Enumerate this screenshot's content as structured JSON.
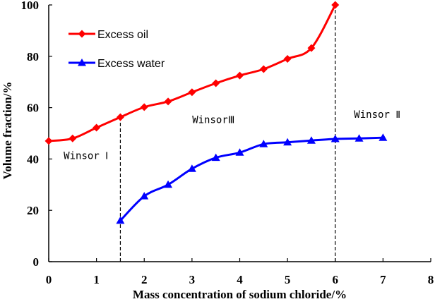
{
  "chart_data": {
    "type": "line",
    "title": "",
    "xlabel": "Mass concentration of sodium chloride/%",
    "ylabel": "Volume fraction/%",
    "xlim": [
      0,
      8
    ],
    "ylim": [
      0,
      100
    ],
    "xticks": [
      "0",
      "1",
      "2",
      "3",
      "4",
      "5",
      "6",
      "7",
      "8"
    ],
    "yticks": [
      "0",
      "20",
      "40",
      "60",
      "80",
      "100"
    ],
    "grid": false,
    "legend_position": "top-left",
    "series": [
      {
        "name": "Excess oil",
        "color": "#ff0000",
        "marker": "diamond",
        "x": [
          0,
          0.5,
          1,
          1.5,
          2,
          2.5,
          3,
          3.5,
          4,
          4.5,
          5,
          5.5,
          6
        ],
        "y": [
          47,
          48,
          52.2,
          56.3,
          60.2,
          62.4,
          66,
          69.5,
          72.5,
          75,
          79,
          83.2,
          100
        ]
      },
      {
        "name": "Excess water",
        "color": "#0000ff",
        "marker": "triangle",
        "x": [
          1.5,
          2,
          2.5,
          3,
          3.5,
          4,
          4.5,
          5,
          5.5,
          6,
          6.5,
          7
        ],
        "y": [
          16,
          25.5,
          30,
          36.2,
          40.5,
          42.5,
          45.8,
          46.5,
          47.2,
          47.8,
          48,
          48.3
        ]
      }
    ],
    "reference_lines": [
      {
        "name": "boundary-1",
        "x": 1.5,
        "y_from": 0,
        "y_to": 56.3
      },
      {
        "name": "boundary-2",
        "x": 6,
        "y_from": 0,
        "y_to": 100
      }
    ],
    "annotations": [
      {
        "name": "winsor-1-label",
        "text": "Winsor Ⅰ",
        "x": 0.78,
        "y": 40
      },
      {
        "name": "winsor-3-label",
        "text": "WinsorⅢ",
        "x": 3.45,
        "y": 54
      },
      {
        "name": "winsor-2-label",
        "text": "Winsor Ⅱ",
        "x": 6.88,
        "y": 56
      }
    ]
  }
}
